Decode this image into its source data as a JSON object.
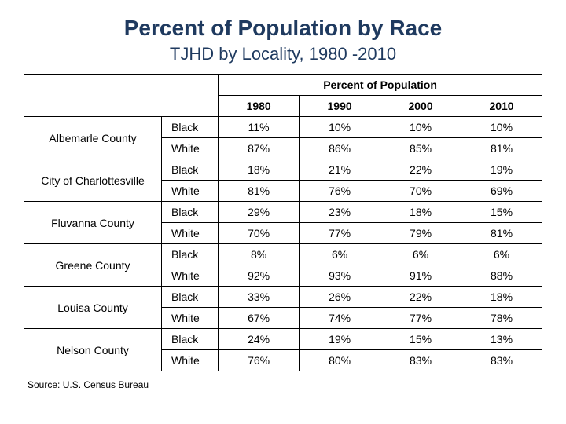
{
  "title": "Percent of Population by Race",
  "subtitle": "TJHD by Locality, 1980 -2010",
  "header_group": "Percent of Population",
  "years": [
    "1980",
    "1990",
    "2000",
    "2010"
  ],
  "race_labels": [
    "Black",
    "White"
  ],
  "localities": [
    {
      "name": "Albemarle County",
      "rows": [
        [
          "11%",
          "10%",
          "10%",
          "10%"
        ],
        [
          "87%",
          "86%",
          "85%",
          "81%"
        ]
      ]
    },
    {
      "name": "City of Charlottesville",
      "rows": [
        [
          "18%",
          "21%",
          "22%",
          "19%"
        ],
        [
          "81%",
          "76%",
          "70%",
          "69%"
        ]
      ]
    },
    {
      "name": "Fluvanna County",
      "rows": [
        [
          "29%",
          "23%",
          "18%",
          "15%"
        ],
        [
          "70%",
          "77%",
          "79%",
          "81%"
        ]
      ]
    },
    {
      "name": "Greene County",
      "rows": [
        [
          "8%",
          "6%",
          "6%",
          "6%"
        ],
        [
          "92%",
          "93%",
          "91%",
          "88%"
        ]
      ]
    },
    {
      "name": "Louisa County",
      "rows": [
        [
          "33%",
          "26%",
          "22%",
          "18%"
        ],
        [
          "67%",
          "74%",
          "77%",
          "78%"
        ]
      ]
    },
    {
      "name": "Nelson County",
      "rows": [
        [
          "24%",
          "19%",
          "15%",
          "13%"
        ],
        [
          "76%",
          "80%",
          "83%",
          "83%"
        ]
      ]
    }
  ],
  "source": "Source: U.S. Census Bureau",
  "colors": {
    "title": "#1f3a5f",
    "border": "#000000",
    "background": "#ffffff"
  },
  "fonts": {
    "title_size": 28,
    "subtitle_size": 22,
    "cell_size": 14,
    "source_size": 12
  }
}
